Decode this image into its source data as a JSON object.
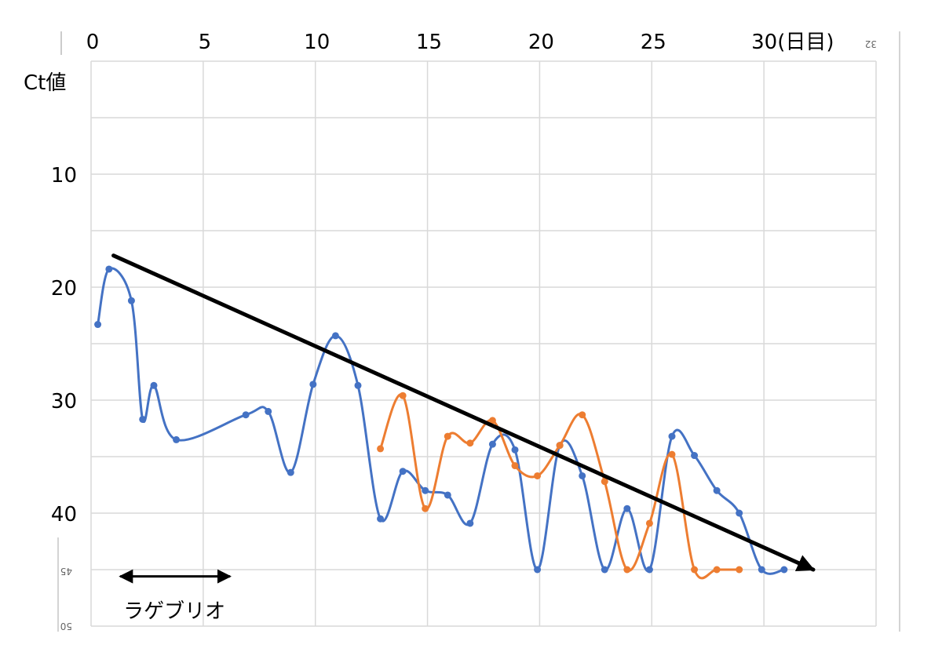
{
  "chart_data": {
    "type": "line",
    "title": "",
    "xlabel": "30(日目)",
    "ylabel": "Ct値",
    "xlim": [
      0,
      35
    ],
    "ylim": [
      0,
      50
    ],
    "y_inverted": true,
    "grid": true,
    "x_ticks": [
      0,
      5,
      10,
      15,
      20,
      25,
      30
    ],
    "x_tick_labels": [
      "0",
      "5",
      "10",
      "15",
      "20",
      "25",
      "30(日目)"
    ],
    "y_ticks": [
      10,
      20,
      30,
      40
    ],
    "y_tick_labels": [
      "10",
      "20",
      "30",
      "40"
    ],
    "mirror_labels": [
      "32",
      "45",
      "50"
    ],
    "series": [
      {
        "color": "#4472C4",
        "x": [
          0.3,
          0.8,
          1.8,
          2.3,
          2.8,
          3.8,
          6.9,
          7.9,
          8.9,
          9.9,
          10.9,
          11.9,
          12.9,
          13.9,
          14.9,
          15.9,
          16.9,
          17.9,
          18.9,
          19.9,
          20.9,
          21.9,
          22.9,
          23.9,
          24.9,
          25.9,
          26.9,
          27.9,
          28.9,
          29.9,
          30.9
        ],
        "y": [
          23.3,
          18.4,
          21.2,
          31.7,
          28.7,
          33.5,
          31.3,
          31.0,
          36.4,
          28.6,
          24.3,
          28.7,
          40.5,
          36.3,
          38.0,
          38.4,
          40.9,
          33.9,
          34.4,
          45.0,
          34.0,
          36.7,
          45.0,
          39.6,
          45.0,
          33.2,
          34.9,
          38.0,
          40.0,
          45.0,
          45.0
        ]
      },
      {
        "color": "#ED7D31",
        "x": [
          12.9,
          13.9,
          14.9,
          15.9,
          16.9,
          17.9,
          18.9,
          19.9,
          20.9,
          21.9,
          22.9,
          23.9,
          24.9,
          25.9,
          26.9,
          27.9,
          28.9
        ],
        "y": [
          34.3,
          29.6,
          39.6,
          33.2,
          33.8,
          31.8,
          35.8,
          36.7,
          34.0,
          31.3,
          37.2,
          45.0,
          40.9,
          34.8,
          45.0,
          45.0,
          45.0
        ]
      }
    ],
    "trend_arrow": {
      "x": [
        1,
        32.2
      ],
      "y": [
        17.2,
        45.0
      ]
    },
    "annotation": {
      "text": "ラゲブリオ",
      "x_range": [
        1.3,
        6.2
      ],
      "y": 45.6
    }
  }
}
